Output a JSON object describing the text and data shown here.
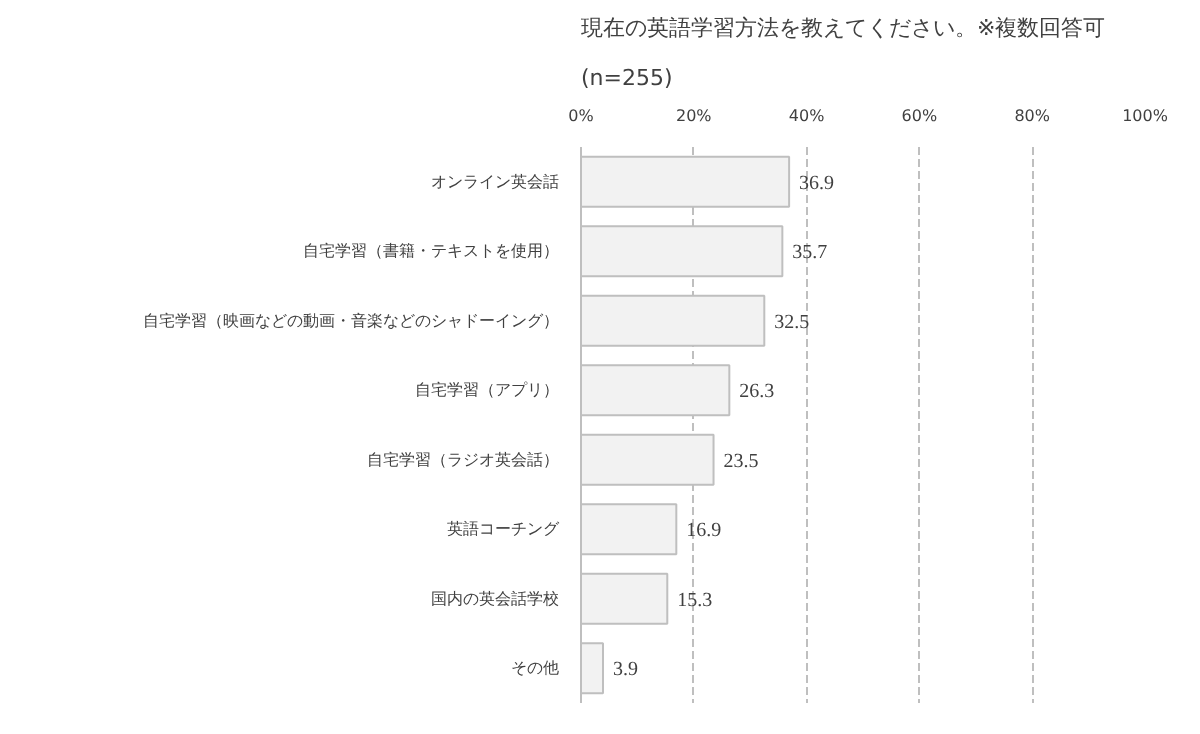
{
  "chart_data": {
    "type": "bar",
    "orientation": "horizontal",
    "title": "現在の英語学習方法を教えてください。※複数回答可",
    "subtitle": "(n=255)",
    "categories": [
      "オンライン英会話",
      "自宅学習（書籍・テキストを使用）",
      "自宅学習（映画などの動画・音楽などのシャドーイング）",
      "自宅学習（アプリ）",
      "自宅学習（ラジオ英会話）",
      "英語コーチング",
      "国内の英会話学校",
      "その他"
    ],
    "values": [
      36.9,
      35.7,
      32.5,
      26.3,
      23.5,
      16.9,
      15.3,
      3.9
    ],
    "color": "#f2f2f2",
    "xlim": [
      0,
      100
    ],
    "xticks": [
      {
        "value": 0,
        "label": "0%"
      },
      {
        "value": 20,
        "label": "20%"
      },
      {
        "value": 40,
        "label": "40%"
      },
      {
        "value": 60,
        "label": "60%"
      },
      {
        "value": 80,
        "label": "80%"
      },
      {
        "value": 100,
        "label": "100%"
      }
    ],
    "grid": "x",
    "data_labels": true
  }
}
